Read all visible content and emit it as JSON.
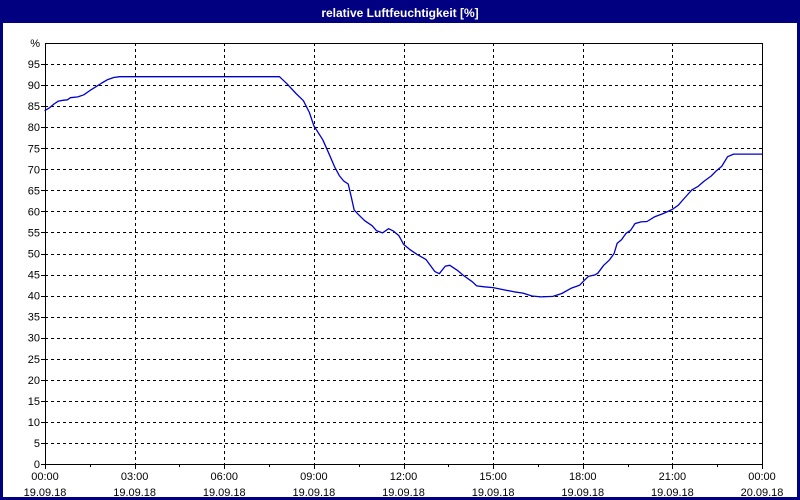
{
  "title": "relative Luftfeuchtigkeit [%]",
  "colors": {
    "titlebar_bg": "#000080",
    "titlebar_text": "#ffffff",
    "page_border": "#000080",
    "line": "#0000cc",
    "grid": "#000000",
    "frame": "#000000",
    "background": "#ffffff"
  },
  "chart_data": {
    "type": "line",
    "title": "relative Luftfeuchtigkeit [%]",
    "ylabel": "%",
    "xlabel": "",
    "y_range": [
      0,
      100
    ],
    "y_ticks": [
      0,
      5,
      10,
      15,
      20,
      25,
      30,
      35,
      40,
      45,
      50,
      55,
      60,
      65,
      70,
      75,
      80,
      85,
      90,
      95
    ],
    "y_unit_label": "%",
    "x_range_hours": [
      0,
      24
    ],
    "x_minor_step_hours": 1.5,
    "grid": "dashed",
    "legend": "none",
    "x_major_ticks": [
      {
        "hour": 0,
        "time": "00:00",
        "date": "19.09.18"
      },
      {
        "hour": 3,
        "time": "03:00",
        "date": "19.09.18"
      },
      {
        "hour": 6,
        "time": "06:00",
        "date": "19.09.18"
      },
      {
        "hour": 9,
        "time": "09:00",
        "date": "19.09.18"
      },
      {
        "hour": 12,
        "time": "12:00",
        "date": "19.09.18"
      },
      {
        "hour": 15,
        "time": "15:00",
        "date": "19.09.18"
      },
      {
        "hour": 18,
        "time": "18:00",
        "date": "19.09.18"
      },
      {
        "hour": 21,
        "time": "21:00",
        "date": "19.09.18"
      },
      {
        "hour": 24,
        "time": "00:00",
        "date": "20.09.18"
      }
    ],
    "series": [
      {
        "name": "relative Luftfeuchtigkeit",
        "color": "#0000cc",
        "points": [
          [
            0.0,
            84.0
          ],
          [
            0.15,
            84.6
          ],
          [
            0.3,
            85.5
          ],
          [
            0.45,
            86.2
          ],
          [
            0.6,
            86.4
          ],
          [
            0.75,
            86.5
          ],
          [
            0.85,
            87.0
          ],
          [
            1.1,
            87.2
          ],
          [
            1.3,
            87.7
          ],
          [
            1.5,
            88.7
          ],
          [
            1.7,
            89.6
          ],
          [
            1.9,
            90.5
          ],
          [
            2.1,
            91.3
          ],
          [
            2.3,
            91.8
          ],
          [
            2.5,
            92.0
          ],
          [
            5.0,
            92.0
          ],
          [
            7.85,
            92.0
          ],
          [
            8.1,
            90.3
          ],
          [
            8.4,
            88.0
          ],
          [
            8.65,
            86.3
          ],
          [
            8.85,
            83.5
          ],
          [
            9.0,
            80.3
          ],
          [
            9.3,
            77.0
          ],
          [
            9.5,
            73.8
          ],
          [
            9.7,
            70.5
          ],
          [
            9.85,
            68.5
          ],
          [
            10.0,
            67.2
          ],
          [
            10.15,
            66.5
          ],
          [
            10.25,
            63.5
          ],
          [
            10.35,
            60.3
          ],
          [
            10.5,
            59.2
          ],
          [
            10.7,
            57.8
          ],
          [
            10.95,
            56.6
          ],
          [
            11.1,
            55.4
          ],
          [
            11.3,
            54.9
          ],
          [
            11.5,
            55.9
          ],
          [
            11.65,
            55.4
          ],
          [
            11.85,
            54.2
          ],
          [
            12.0,
            52.2
          ],
          [
            12.2,
            51.0
          ],
          [
            12.45,
            49.8
          ],
          [
            12.75,
            48.6
          ],
          [
            13.05,
            45.7
          ],
          [
            13.2,
            45.2
          ],
          [
            13.4,
            47.0
          ],
          [
            13.55,
            47.2
          ],
          [
            13.8,
            46.0
          ],
          [
            14.0,
            44.8
          ],
          [
            14.3,
            43.3
          ],
          [
            14.45,
            42.3
          ],
          [
            14.7,
            42.1
          ],
          [
            15.0,
            41.9
          ],
          [
            15.35,
            41.4
          ],
          [
            15.7,
            40.9
          ],
          [
            16.0,
            40.6
          ],
          [
            16.3,
            39.9
          ],
          [
            16.6,
            39.7
          ],
          [
            17.0,
            39.8
          ],
          [
            17.3,
            40.5
          ],
          [
            17.6,
            41.7
          ],
          [
            17.9,
            42.5
          ],
          [
            18.05,
            43.6
          ],
          [
            18.2,
            44.6
          ],
          [
            18.4,
            44.9
          ],
          [
            18.5,
            45.3
          ],
          [
            18.7,
            47.2
          ],
          [
            18.9,
            48.5
          ],
          [
            19.05,
            50.0
          ],
          [
            19.15,
            52.4
          ],
          [
            19.3,
            53.3
          ],
          [
            19.45,
            54.8
          ],
          [
            19.6,
            55.5
          ],
          [
            19.75,
            57.1
          ],
          [
            19.95,
            57.5
          ],
          [
            20.15,
            57.6
          ],
          [
            20.4,
            58.7
          ],
          [
            20.7,
            59.5
          ],
          [
            21.0,
            60.5
          ],
          [
            21.2,
            61.5
          ],
          [
            21.35,
            62.7
          ],
          [
            21.5,
            63.9
          ],
          [
            21.65,
            65.1
          ],
          [
            21.85,
            65.9
          ],
          [
            22.05,
            67.1
          ],
          [
            22.3,
            68.4
          ],
          [
            22.45,
            69.5
          ],
          [
            22.65,
            70.7
          ],
          [
            22.85,
            73.0
          ],
          [
            23.05,
            73.6
          ],
          [
            24.0,
            73.6
          ]
        ]
      }
    ]
  }
}
